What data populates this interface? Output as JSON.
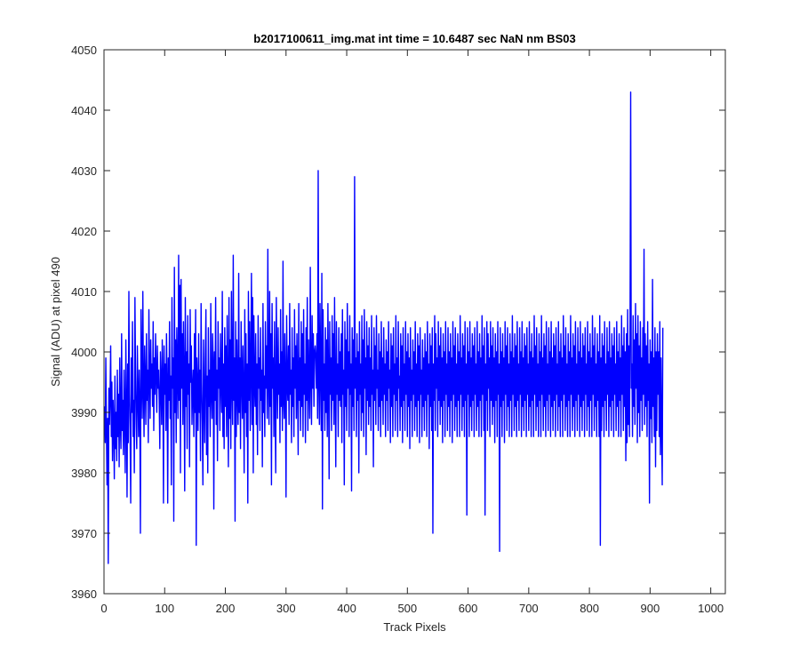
{
  "chart_data": {
    "type": "line",
    "title": "b2017100611_img.mat int time = 10.6487 sec  NaN nm BS03",
    "xlabel": "Track Pixels",
    "ylabel": "Signal (ADU) at pixel 490",
    "xlim": [
      0,
      1024
    ],
    "ylim": [
      3960,
      4050
    ],
    "xticks": [
      0,
      100,
      200,
      300,
      400,
      500,
      600,
      700,
      800,
      900,
      1000
    ],
    "yticks": [
      3960,
      3970,
      3980,
      3990,
      4000,
      4010,
      4020,
      4030,
      4040,
      4050
    ],
    "grid": false,
    "legend": "none",
    "line_color": "#0000ff",
    "series": [
      {
        "name": "",
        "x_start": 1,
        "x_step": 1,
        "values": [
          3991,
          3985,
          3999,
          3987,
          3978,
          3989,
          3965,
          3994,
          3988,
          3993,
          4001,
          3986,
          3995,
          3982,
          3992,
          3988,
          3979,
          3996,
          3984,
          3990,
          3982,
          3997,
          3986,
          3993,
          3981,
          3999,
          3988,
          3984,
          4003,
          3987,
          3992,
          3983,
          3997,
          3989,
          3980,
          4002,
          3991,
          3976,
          3998,
          3985,
          4010,
          3993,
          3987,
          3975,
          3999,
          3990,
          4005,
          3986,
          3992,
          3980,
          4009,
          3996,
          3988,
          3984,
          4001,
          3993,
          3986,
          3997,
          3991,
          3970,
          4007,
          3998,
          3989,
          4010,
          3994,
          3986,
          4001,
          3995,
          3988,
          4003,
          3992,
          3997,
          3985,
          4007,
          3996,
          3989,
          4002,
          3994,
          3998,
          3991,
          4005,
          3987,
          3999,
          3993,
          4003,
          3996,
          3990,
          4001,
          3994,
          3997,
          3992,
          3984,
          4000,
          3995,
          3988,
          4002,
          3996,
          3975,
          4001,
          3993,
          3998,
          3987,
          4003,
          3995,
          3975,
          3999,
          3992,
          4005,
          3989,
          3996,
          3978,
          4009,
          3994,
          3999,
          3972,
          4014,
          3990,
          4002,
          3985,
          4004,
          3997,
          3989,
          4016,
          3992,
          4011,
          3980,
          4012,
          3994,
          4003,
          3988,
          4005,
          3996,
          3977,
          4009,
          3991,
          4000,
          3984,
          4006,
          3993,
          3998,
          3981,
          4007,
          3995,
          4001,
          3988,
          3994,
          3997,
          3986,
          4003,
          3990,
          4007,
          3968,
          3999,
          3994,
          3987,
          4003,
          3990,
          3997,
          3982,
          4008,
          3995,
          3988,
          3978,
          4002,
          3993,
          3985,
          3999,
          4007,
          3983,
          3996,
          3980,
          4004,
          3991,
          3997,
          3986,
          4008,
          3993,
          3989,
          4003,
          3998,
          3974,
          4000,
          3992,
          4009,
          3988,
          3997,
          3982,
          4005,
          3994,
          3999,
          3987,
          4003,
          3995,
          3990,
          4010,
          3986,
          3998,
          3984,
          4004,
          3991,
          4001,
          3986,
          4006,
          3994,
          3981,
          4009,
          3989,
          4002,
          3984,
          4010,
          3995,
          3988,
          4016,
          3992,
          3999,
          3972,
          4005,
          3986,
          4002,
          3993,
          3988,
          4013,
          3990,
          3999,
          3984,
          4005,
          3996,
          3989,
          4001,
          3993,
          3980,
          4007,
          3990,
          4003,
          3986,
          3998,
          3975,
          4010,
          3992,
          4005,
          3987,
          3997,
          4013,
          3988,
          4009,
          3980,
          4006,
          3995,
          3991,
          4003,
          3988,
          3998,
          3983,
          4006,
          3994,
          3999,
          3987,
          4004,
          3992,
          3997,
          3981,
          4008,
          3990,
          3996,
          3986,
          4005,
          3994,
          4001,
          3989,
          4017,
          3995,
          3988,
          4010,
          3991,
          4003,
          3978,
          4008,
          3994,
          3999,
          3986,
          4005,
          3992,
          3980,
          4009,
          3997,
          3989,
          4004,
          3993,
          3998,
          3985,
          4007,
          3991,
          4000,
          3987,
          4015,
          3992,
          3989,
          4003,
          3996,
          3976,
          4006,
          3995,
          3992,
          4001,
          3988,
          4008,
          3993,
          3997,
          3985,
          4004,
          3991,
          3999,
          3986,
          4007,
          3994,
          4001,
          3989,
          4003,
          3995,
          3983,
          4008,
          3992,
          3999,
          3987,
          4005,
          3991,
          4003,
          3986,
          4007,
          3993,
          3998,
          3985,
          4004,
          3992,
          4009,
          3987,
          4002,
          3995,
          3989,
          4014,
          3996,
          3988,
          4006,
          3994,
          4003,
          3991,
          4000,
          4001,
          3999,
          3994,
          4003,
          3989,
          4030,
          3995,
          3988,
          4008,
          3997,
          3987,
          4013,
          3974,
          4007,
          3992,
          3998,
          3987,
          4004,
          3990,
          4002,
          3986,
          4008,
          3995,
          3979,
          4005,
          3993,
          3999,
          3987,
          4006,
          3992,
          4003,
          3988,
          4009,
          3994,
          3981,
          4005,
          3993,
          3998,
          3986,
          4004,
          3992,
          4000,
          3991,
          4003,
          3985,
          4007,
          3993,
          3997,
          3978,
          4005,
          3991,
          4002,
          3987,
          4008,
          3994,
          4000,
          3986,
          4006,
          3993,
          3998,
          3977,
          4004,
          3991,
          4002,
          3987,
          4029,
          3994,
          3999,
          3986,
          4003,
          3992,
          4000,
          3980,
          4005,
          3993,
          3998,
          3987,
          4006,
          3990,
          4002,
          3986,
          4007,
          3994,
          3999,
          3983,
          4005,
          3992,
          4001,
          3988,
          4004,
          3991,
          3999,
          3987,
          4006,
          3993,
          3997,
          3981,
          4004,
          3992,
          4001,
          3988,
          4006,
          3994,
          3997,
          3987,
          4003,
          3991,
          4000,
          3986,
          4005,
          3992,
          3999,
          3988,
          4004,
          3993,
          3998,
          3986,
          4002,
          3992,
          4000,
          3987,
          4005,
          3994,
          3997,
          3985,
          4003,
          3991,
          4001,
          3986,
          4004,
          3993,
          3998,
          3987,
          4006,
          3992,
          3999,
          3986,
          4005,
          3994,
          3996,
          3987,
          4003,
          3991,
          4001,
          3985,
          4004,
          3992,
          3998,
          3987,
          4005,
          3993,
          4000,
          3986,
          4003,
          3991,
          3999,
          3984,
          4004,
          3992,
          3997,
          3986,
          4002,
          3993,
          4000,
          3987,
          4005,
          3991,
          3998,
          3986,
          4003,
          3992,
          4001,
          3985,
          4004,
          3993,
          3997,
          3986,
          4002,
          3991,
          3999,
          3987,
          4003,
          3992,
          4000,
          3986,
          4005,
          3993,
          3998,
          3984,
          4003,
          3991,
          4001,
          3987,
          4004,
          3970,
          3998,
          3992,
          4006,
          3987,
          4003,
          3994,
          3999,
          3986,
          4005,
          3992,
          4001,
          3988,
          4004,
          3991,
          3999,
          3985,
          4003,
          3992,
          4000,
          3986,
          4005,
          3993,
          3998,
          3987,
          4004,
          3991,
          4000,
          3986,
          4003,
          3992,
          3999,
          3985,
          4005,
          3993,
          4001,
          3987,
          4004,
          3991,
          3998,
          3986,
          4003,
          3992,
          4000,
          3986,
          4006,
          3993,
          3999,
          3987,
          4003,
          3991,
          4001,
          3986,
          4005,
          3992,
          3998,
          3973,
          4004,
          3993,
          4000,
          3986,
          4005,
          3991,
          3999,
          3987,
          4003,
          3992,
          4001,
          3986,
          4004,
          3993,
          3998,
          3987,
          4005,
          3991,
          4000,
          3986,
          4003,
          3992,
          3999,
          3986,
          4006,
          3993,
          4001,
          3987,
          4004,
          3973,
          3998,
          3992,
          4005,
          3987,
          4003,
          3994,
          3999,
          3986,
          4005,
          3992,
          4001,
          3988,
          4004,
          3991,
          3999,
          3985,
          4003,
          3992,
          4000,
          3986,
          4005,
          3993,
          3998,
          3967,
          4004,
          3991,
          4000,
          3986,
          4003,
          3992,
          3999,
          3985,
          4005,
          3993,
          4001,
          3987,
          4004,
          3991,
          3998,
          3986,
          4003,
          3992,
          4000,
          3986,
          4006,
          3993,
          3999,
          3987,
          4003,
          3991,
          4001,
          3986,
          4005,
          3992,
          3998,
          3987,
          4004,
          3993,
          4000,
          3986,
          4005,
          3991,
          3999,
          3987,
          4003,
          3992,
          4001,
          3986,
          4004,
          3993,
          3998,
          3987,
          4005,
          3991,
          4000,
          3986,
          4003,
          3992,
          3999,
          3986,
          4006,
          3993,
          4001,
          3987,
          4004,
          3991,
          3998,
          3986,
          4003,
          3992,
          4000,
          3986,
          4006,
          3993,
          3999,
          3987,
          4003,
          3991,
          4001,
          3986,
          4005,
          3992,
          3998,
          3987,
          4004,
          3993,
          4000,
          3986,
          4005,
          3991,
          3999,
          3987,
          4003,
          3992,
          4001,
          3986,
          4004,
          3993,
          3998,
          3987,
          4005,
          3991,
          4000,
          3986,
          4003,
          3992,
          3999,
          3986,
          4006,
          3993,
          4001,
          3987,
          4004,
          3991,
          3998,
          3986,
          4003,
          3992,
          4000,
          3986,
          4006,
          3993,
          3999,
          3987,
          4003,
          3991,
          4001,
          3986,
          4005,
          3992,
          3998,
          3987,
          4004,
          3993,
          4000,
          3986,
          4005,
          3991,
          3999,
          3987,
          4003,
          3992,
          4001,
          3986,
          4004,
          3993,
          3998,
          3987,
          4005,
          3991,
          4000,
          3986,
          4003,
          3992,
          3999,
          3986,
          4006,
          3993,
          4001,
          3987,
          4004,
          3991,
          3998,
          3986,
          4003,
          3992,
          4000,
          3986,
          4006,
          3968,
          3999,
          3987,
          4003,
          3991,
          4001,
          3986,
          4005,
          3992,
          3998,
          3987,
          4004,
          3993,
          4000,
          3986,
          4005,
          3991,
          3999,
          3987,
          4003,
          3992,
          4001,
          3986,
          4004,
          3993,
          3998,
          3987,
          4005,
          3991,
          4000,
          3986,
          4003,
          3992,
          3999,
          3986,
          4006,
          3993,
          4001,
          3987,
          4004,
          3991,
          4000,
          3982,
          4003,
          3985,
          4007,
          3988,
          4001,
          3986,
          4005,
          4043,
          3994,
          3998,
          3986,
          4006,
          3991,
          4002,
          3988,
          4008,
          3994,
          4003,
          3985,
          4006,
          3990,
          4001,
          3986,
          4005,
          3992,
          3999,
          3987,
          4004,
          3993,
          4017,
          3988,
          4003,
          3991,
          4001,
          3986,
          4005,
          3992,
          3998,
          3975,
          4002,
          3989,
          4000,
          3985,
          4012,
          3991,
          3999,
          3986,
          4004,
          3981,
          4000,
          3987,
          4003,
          3993,
          4000,
          3986,
          4005,
          3983,
          3999,
          3987,
          3978,
          4004
        ]
      }
    ]
  }
}
